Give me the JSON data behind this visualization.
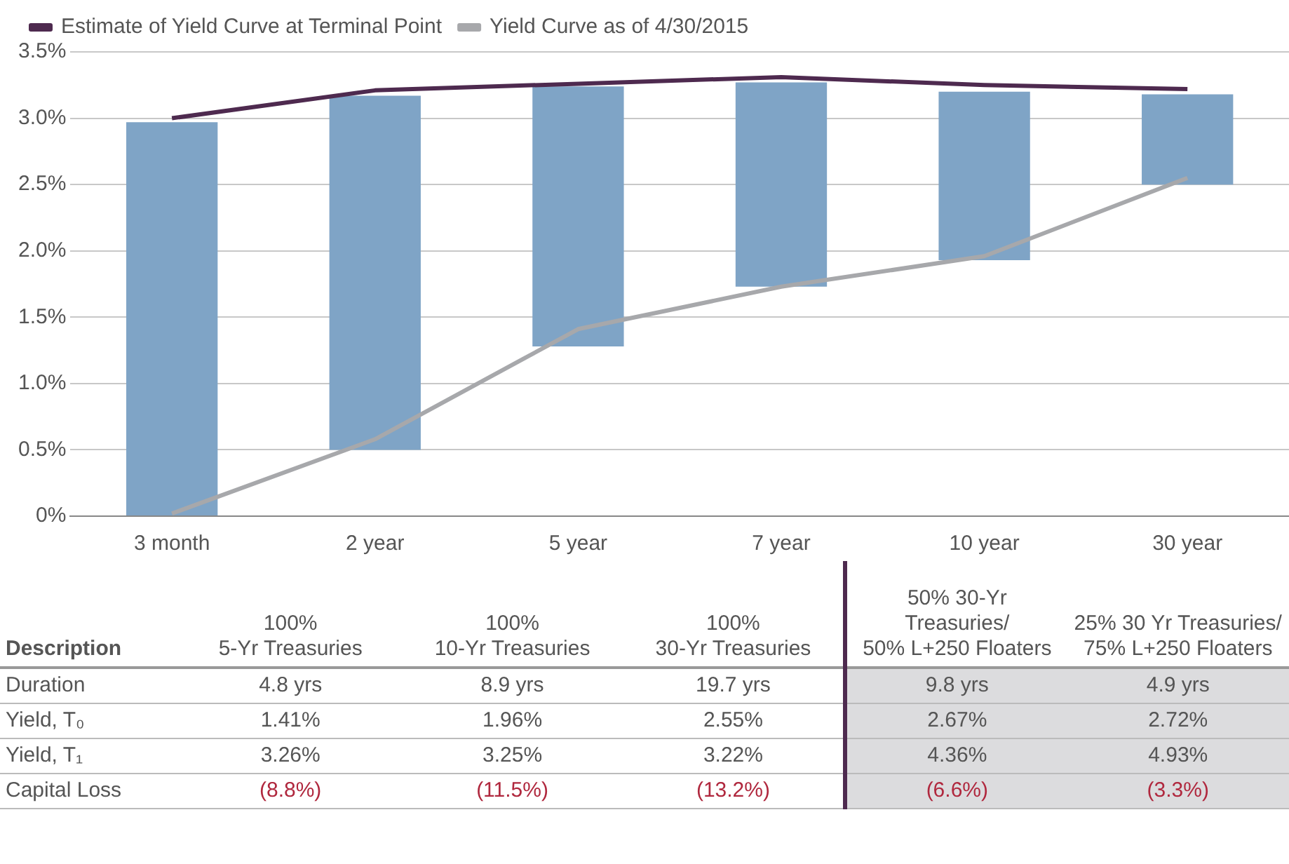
{
  "chart_data": [
    {
      "type": "line",
      "categories": [
        "3 month",
        "2 year",
        "5 year",
        "7 year",
        "10 year",
        "30 year"
      ],
      "series": [
        {
          "type": "bar",
          "color": "#7fa4c6",
          "base": [
            0,
            0.5,
            1.28,
            1.73,
            1.93,
            2.5
          ],
          "values": [
            2.97,
            2.67,
            1.96,
            1.54,
            1.27,
            0.68
          ]
        },
        {
          "name": "Estimate of Yield Curve at Terminal Point",
          "color": "#4e2a4f",
          "values": [
            3.0,
            3.21,
            3.26,
            3.31,
            3.25,
            3.22
          ]
        },
        {
          "name": "Yield Curve as of 4/30/2015",
          "color": "#a7a8ab",
          "values": [
            0.02,
            0.58,
            1.41,
            1.73,
            1.96,
            2.55
          ]
        }
      ],
      "ylim": [
        0,
        3.5
      ],
      "yticks": [
        {
          "value": 0,
          "label": "0%"
        },
        {
          "value": 0.5,
          "label": "0.5%"
        },
        {
          "value": 1,
          "label": "1.0%"
        },
        {
          "value": 1.5,
          "label": "1.5%"
        },
        {
          "value": 2,
          "label": "2.0%"
        },
        {
          "value": 2.5,
          "label": "2.5%"
        },
        {
          "value": 3,
          "label": "3.0%"
        },
        {
          "value": 3.5,
          "label": "3.5%"
        }
      ],
      "grid": "y",
      "legend": "top left",
      "marker": "none",
      "line_style": "solid"
    },
    {
      "type": "other",
      "annotations": [
        "Description",
        "100%\n5-Yr Treasuries",
        "100%\n10-Yr Treasuries",
        "100%\n30-Yr Treasuries",
        "50% 30-Yr Treasuries/\n50% L+250 Floaters",
        "25% 30 Yr Treasuries/\n75% L+250 Floaters",
        "Duration",
        "4.8 yrs",
        "8.9 yrs",
        "19.7 yrs",
        "9.8 yrs",
        "4.9 yrs",
        "Yield, T₀",
        "1.41%",
        "1.96%",
        "2.55%",
        "2.67%",
        "2.72%",
        "Yield, T₁",
        "3.26%",
        "3.25%",
        "3.22%",
        "4.36%",
        "4.93%",
        "Capital Loss",
        "(8.8%)",
        "(11.5%)",
        "(13.2%)",
        "(6.6%)",
        "(3.3%)"
      ]
    }
  ]
}
